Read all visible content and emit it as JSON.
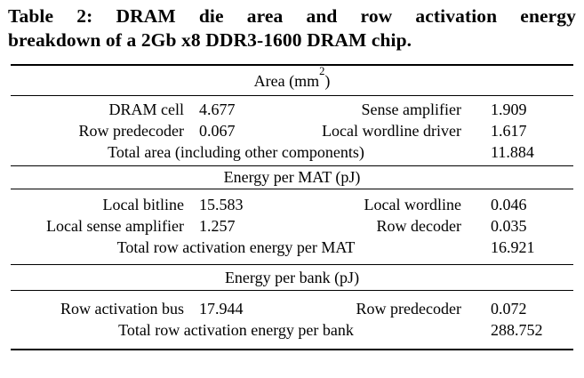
{
  "caption": {
    "line1": "Table 2:  DRAM die area and row activation energy",
    "line2": "breakdown of a 2Gb x8 DDR3-1600 DRAM chip."
  },
  "colors": {
    "text": "#000000",
    "background": "#ffffff",
    "rule": "#000000"
  },
  "sections": [
    {
      "header_pre": "Area (mm",
      "header_sup": "2",
      "header_post": ")",
      "rows": [
        {
          "l1": "DRAM cell",
          "v1": "4.677",
          "l2": "Sense amplifier",
          "v2": "1.909"
        },
        {
          "l1": "Row predecoder",
          "v1": "0.067",
          "l2": "Local wordline driver",
          "v2": "1.617"
        }
      ],
      "total": {
        "label": "Total area (including other components)",
        "value": "11.884"
      }
    },
    {
      "header": "Energy per MAT (pJ)",
      "rows": [
        {
          "l1": "Local bitline",
          "v1": "15.583",
          "l2": "Local wordline",
          "v2": "0.046"
        },
        {
          "l1": "Local sense amplifier",
          "v1": "1.257",
          "l2": "Row decoder",
          "v2": "0.035"
        }
      ],
      "total": {
        "label": "Total row activation energy per MAT",
        "value": "16.921"
      }
    },
    {
      "header": "Energy per bank (pJ)",
      "rows": [
        {
          "l1": "Row activation bus",
          "v1": "17.944",
          "l2": "Row predecoder",
          "v2": "0.072"
        }
      ],
      "total": {
        "label": "Total row activation energy per bank",
        "value": "288.752"
      }
    }
  ]
}
